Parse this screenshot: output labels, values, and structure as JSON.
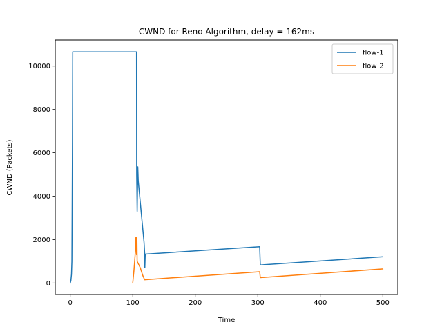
{
  "chart_data": {
    "type": "line",
    "title": "CWND for Reno Algorithm, delay = 162ms",
    "xlabel": "Time",
    "ylabel": "CWND (Packets)",
    "xlim": [
      -24,
      524
    ],
    "ylim": [
      -530,
      11200
    ],
    "xticks": [
      0,
      100,
      200,
      300,
      400,
      500
    ],
    "yticks": [
      0,
      2000,
      4000,
      6000,
      8000,
      10000
    ],
    "grid": false,
    "legend_position": "top-right",
    "series": [
      {
        "name": "flow-1",
        "color": "#1f77b4",
        "points": [
          [
            0,
            0
          ],
          [
            1,
            100
          ],
          [
            2,
            400
          ],
          [
            2.6,
            1000
          ],
          [
            3,
            3000
          ],
          [
            3.5,
            6500
          ],
          [
            4,
            10650
          ],
          [
            106,
            10650
          ],
          [
            106.3,
            5000
          ],
          [
            107,
            3300
          ],
          [
            108,
            5350
          ],
          [
            108.8,
            4700
          ],
          [
            115,
            2800
          ],
          [
            118,
            1900
          ],
          [
            119,
            1400
          ],
          [
            119.3,
            700
          ],
          [
            120,
            1330
          ],
          [
            303,
            1670
          ],
          [
            304,
            830
          ],
          [
            500,
            1210
          ]
        ]
      },
      {
        "name": "flow-2",
        "color": "#ff7f0e",
        "points": [
          [
            100,
            0
          ],
          [
            102,
            600
          ],
          [
            104,
            1400
          ],
          [
            105,
            2100
          ],
          [
            106,
            1300
          ],
          [
            106.6,
            2100
          ],
          [
            107,
            1000
          ],
          [
            112,
            700
          ],
          [
            116,
            350
          ],
          [
            119,
            150
          ],
          [
            303,
            520
          ],
          [
            304,
            250
          ],
          [
            500,
            650
          ]
        ]
      }
    ]
  }
}
